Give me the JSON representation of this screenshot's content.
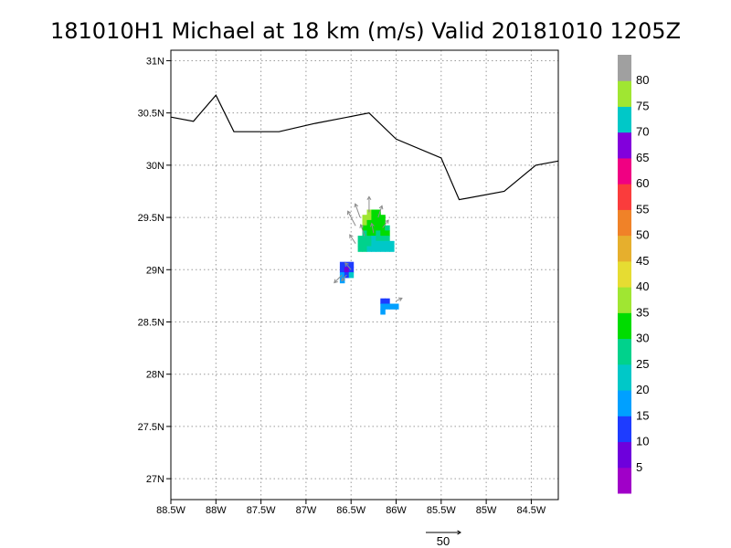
{
  "chart_data": {
    "type": "heatmap",
    "title": "181010H1 Michael at 18 km (m/s) Valid 20181010 1205Z",
    "x_tick_labels": [
      "88.5W",
      "88W",
      "87.5W",
      "87W",
      "86.5W",
      "86W",
      "85.5W",
      "85W",
      "84.5W"
    ],
    "y_tick_labels": [
      "27N",
      "27.5N",
      "28N",
      "28.5N",
      "29N",
      "29.5N",
      "30N",
      "30.5N",
      "31N"
    ],
    "x_range_lon": [
      -88.5,
      -84.2
    ],
    "y_range_lat": [
      26.8,
      31.1
    ],
    "grid": true,
    "colorbar": {
      "placement": "right",
      "labels": [
        "5",
        "10",
        "15",
        "20",
        "25",
        "30",
        "35",
        "40",
        "45",
        "50",
        "55",
        "60",
        "65",
        "70",
        "75",
        "80"
      ],
      "colors": [
        "#a000c8",
        "#6e00dc",
        "#1e3cff",
        "#00a0ff",
        "#00c8c8",
        "#00d28c",
        "#00dc00",
        "#a0e632",
        "#e6dc32",
        "#e6af2d",
        "#f08228",
        "#fa3c3c",
        "#f00082",
        "#8200dc",
        "#00c8c8",
        "#a0e632",
        "#a0a0a0"
      ]
    },
    "coastline": [
      [
        -88.5,
        30.46
      ],
      [
        -88.25,
        30.42
      ],
      [
        -88.0,
        30.67
      ],
      [
        -87.8,
        30.32
      ],
      [
        -87.3,
        30.32
      ],
      [
        -86.9,
        30.4
      ],
      [
        -86.3,
        30.5
      ],
      [
        -86.0,
        30.25
      ],
      [
        -85.5,
        30.07
      ],
      [
        -85.3,
        29.67
      ],
      [
        -84.8,
        29.75
      ],
      [
        -84.45,
        30.0
      ],
      [
        -84.2,
        30.04
      ]
    ],
    "cells": [
      {
        "lon": -86.3,
        "lat": 29.55,
        "value": 38
      },
      {
        "lon": -86.25,
        "lat": 29.55,
        "value": 33
      },
      {
        "lon": -86.2,
        "lat": 29.55,
        "value": 31
      },
      {
        "lon": -86.35,
        "lat": 29.5,
        "value": 39
      },
      {
        "lon": -86.3,
        "lat": 29.5,
        "value": 38
      },
      {
        "lon": -86.25,
        "lat": 29.5,
        "value": 34
      },
      {
        "lon": -86.2,
        "lat": 29.5,
        "value": 33
      },
      {
        "lon": -86.15,
        "lat": 29.5,
        "value": 30
      },
      {
        "lon": -86.35,
        "lat": 29.45,
        "value": 37
      },
      {
        "lon": -86.3,
        "lat": 29.45,
        "value": 34
      },
      {
        "lon": -86.25,
        "lat": 29.45,
        "value": 33
      },
      {
        "lon": -86.2,
        "lat": 29.45,
        "value": 32
      },
      {
        "lon": -86.15,
        "lat": 29.45,
        "value": 31
      },
      {
        "lon": -86.35,
        "lat": 29.4,
        "value": 33
      },
      {
        "lon": -86.3,
        "lat": 29.4,
        "value": 31
      },
      {
        "lon": -86.25,
        "lat": 29.4,
        "value": 33
      },
      {
        "lon": -86.2,
        "lat": 29.4,
        "value": 34
      },
      {
        "lon": -86.15,
        "lat": 29.4,
        "value": 31
      },
      {
        "lon": -86.1,
        "lat": 29.4,
        "value": 28
      },
      {
        "lon": -86.35,
        "lat": 29.35,
        "value": 28
      },
      {
        "lon": -86.3,
        "lat": 29.35,
        "value": 30
      },
      {
        "lon": -86.25,
        "lat": 29.35,
        "value": 32
      },
      {
        "lon": -86.2,
        "lat": 29.35,
        "value": 27
      },
      {
        "lon": -86.15,
        "lat": 29.35,
        "value": 33
      },
      {
        "lon": -86.1,
        "lat": 29.35,
        "value": 31
      },
      {
        "lon": -86.4,
        "lat": 29.3,
        "value": 26
      },
      {
        "lon": -86.35,
        "lat": 29.3,
        "value": 27
      },
      {
        "lon": -86.3,
        "lat": 29.3,
        "value": 26
      },
      {
        "lon": -86.25,
        "lat": 29.3,
        "value": 24
      },
      {
        "lon": -86.2,
        "lat": 29.3,
        "value": 27
      },
      {
        "lon": -86.15,
        "lat": 29.3,
        "value": 26
      },
      {
        "lon": -86.1,
        "lat": 29.3,
        "value": 29
      },
      {
        "lon": -86.4,
        "lat": 29.25,
        "value": 27
      },
      {
        "lon": -86.35,
        "lat": 29.25,
        "value": 26
      },
      {
        "lon": -86.3,
        "lat": 29.25,
        "value": 25
      },
      {
        "lon": -86.25,
        "lat": 29.25,
        "value": 24
      },
      {
        "lon": -86.2,
        "lat": 29.25,
        "value": 23
      },
      {
        "lon": -86.15,
        "lat": 29.25,
        "value": 24
      },
      {
        "lon": -86.1,
        "lat": 29.25,
        "value": 23
      },
      {
        "lon": -86.05,
        "lat": 29.25,
        "value": 22
      },
      {
        "lon": -86.4,
        "lat": 29.2,
        "value": 26
      },
      {
        "lon": -86.35,
        "lat": 29.2,
        "value": 25
      },
      {
        "lon": -86.3,
        "lat": 29.2,
        "value": 23
      },
      {
        "lon": -86.25,
        "lat": 29.2,
        "value": 22
      },
      {
        "lon": -86.2,
        "lat": 29.2,
        "value": 23
      },
      {
        "lon": -86.15,
        "lat": 29.2,
        "value": 22
      },
      {
        "lon": -86.1,
        "lat": 29.2,
        "value": 22
      },
      {
        "lon": -86.05,
        "lat": 29.2,
        "value": 21
      },
      {
        "lon": -86.6,
        "lat": 29.05,
        "value": 14
      },
      {
        "lon": -86.55,
        "lat": 29.05,
        "value": 13
      },
      {
        "lon": -86.5,
        "lat": 29.05,
        "value": 12
      },
      {
        "lon": -86.6,
        "lat": 29.0,
        "value": 14
      },
      {
        "lon": -86.55,
        "lat": 29.0,
        "value": 9
      },
      {
        "lon": -86.5,
        "lat": 29.0,
        "value": 14
      },
      {
        "lon": -86.6,
        "lat": 28.95,
        "value": 18
      },
      {
        "lon": -86.55,
        "lat": 28.95,
        "value": 14
      },
      {
        "lon": -86.5,
        "lat": 28.95,
        "value": 22
      },
      {
        "lon": -86.6,
        "lat": 28.9,
        "value": 17
      },
      {
        "lon": -86.15,
        "lat": 28.7,
        "value": 12
      },
      {
        "lon": -86.1,
        "lat": 28.7,
        "value": 13
      },
      {
        "lon": -86.15,
        "lat": 28.65,
        "value": 17
      },
      {
        "lon": -86.1,
        "lat": 28.65,
        "value": 19
      },
      {
        "lon": -86.05,
        "lat": 28.65,
        "value": 18
      },
      {
        "lon": -86.0,
        "lat": 28.65,
        "value": 17
      },
      {
        "lon": -86.15,
        "lat": 28.6,
        "value": 19
      }
    ],
    "vectors": [
      {
        "lon": -86.45,
        "lat": 29.42,
        "u": -8,
        "v": 15
      },
      {
        "lon": -86.4,
        "lat": 29.5,
        "u": -5,
        "v": 14
      },
      {
        "lon": -86.3,
        "lat": 29.55,
        "u": 0,
        "v": 16
      },
      {
        "lon": -86.2,
        "lat": 29.5,
        "u": 4,
        "v": 12
      },
      {
        "lon": -86.15,
        "lat": 29.4,
        "u": 6,
        "v": 8
      },
      {
        "lon": -86.45,
        "lat": 29.25,
        "u": -6,
        "v": 9
      },
      {
        "lon": -86.35,
        "lat": 29.32,
        "u": -4,
        "v": 12
      },
      {
        "lon": -86.25,
        "lat": 29.35,
        "u": -2,
        "v": 10
      },
      {
        "lon": -86.6,
        "lat": 28.95,
        "u": -8,
        "v": -8
      },
      {
        "lon": -86.5,
        "lat": 29.0,
        "u": -6,
        "v": 7
      },
      {
        "lon": -86.55,
        "lat": 28.95,
        "u": -5,
        "v": -6
      },
      {
        "lon": -86.0,
        "lat": 28.7,
        "u": 6,
        "v": 3
      }
    ],
    "reference_vector": {
      "label": "50"
    }
  }
}
